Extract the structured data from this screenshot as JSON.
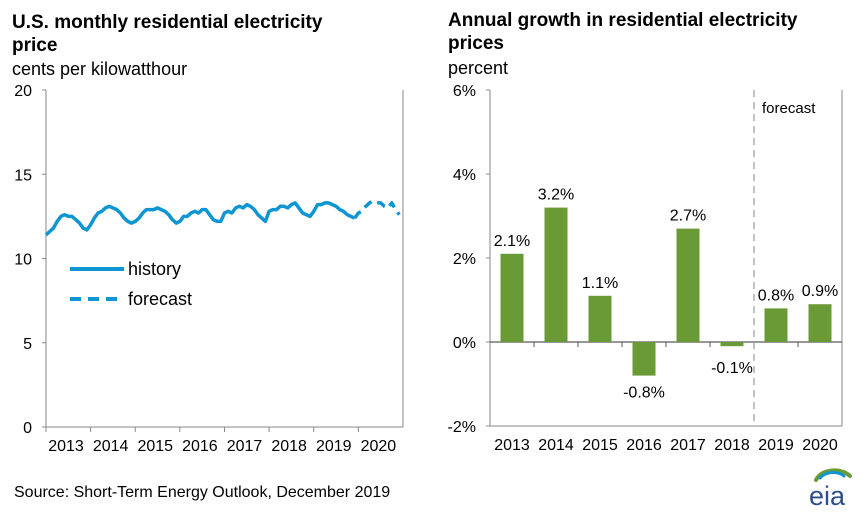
{
  "left_chart": {
    "title": "U.S. monthly residential electricity price",
    "unit": "cents per kilowatthour",
    "legend": {
      "history": "history",
      "forecast": "forecast"
    },
    "color": "#0f96d2"
  },
  "right_chart": {
    "title": "Annual growth in residential electricity prices",
    "unit": "percent",
    "forecast_label": "forecast",
    "bar_color": "#6a9a35"
  },
  "source": "Source: Short-Term Energy Outlook, December 2019",
  "logo_text": "eia",
  "chart_data": [
    {
      "type": "line",
      "title": "U.S. monthly residential electricity price",
      "ylabel": "cents per kilowatthour",
      "xlabel": "",
      "ylim": [
        0,
        20
      ],
      "yticks": [
        0,
        5,
        10,
        15,
        20
      ],
      "xticks": [
        "2013",
        "2014",
        "2015",
        "2016",
        "2017",
        "2018",
        "2019",
        "2020"
      ],
      "x_start": "2013-01",
      "frequency": "monthly",
      "legend_position": "left-middle",
      "series": [
        {
          "name": "history",
          "style": "solid",
          "values": [
            11.4,
            11.6,
            11.8,
            12.2,
            12.5,
            12.6,
            12.5,
            12.5,
            12.3,
            12.1,
            11.8,
            11.7,
            12.0,
            12.4,
            12.7,
            12.8,
            13.0,
            13.1,
            13.0,
            12.9,
            12.7,
            12.4,
            12.2,
            12.1,
            12.2,
            12.4,
            12.7,
            12.9,
            12.9,
            12.9,
            13.0,
            12.9,
            12.8,
            12.6,
            12.3,
            12.1,
            12.2,
            12.5,
            12.5,
            12.7,
            12.8,
            12.7,
            12.9,
            12.9,
            12.6,
            12.3,
            12.2,
            12.2,
            12.7,
            12.8,
            12.7,
            13.0,
            13.1,
            13.0,
            13.2,
            13.1,
            12.9,
            12.6,
            12.4,
            12.2,
            12.8,
            12.9,
            12.9,
            13.1,
            13.1,
            13.0,
            13.2,
            13.3,
            13.0,
            12.7,
            12.6,
            12.5,
            12.8,
            13.2,
            13.2,
            13.3,
            13.3,
            13.2,
            13.1,
            12.9,
            12.8,
            12.6,
            12.5,
            12.4
          ]
        },
        {
          "name": "forecast",
          "style": "dashed",
          "start_index": 83,
          "values": [
            12.4,
            12.7,
            12.8,
            13.1,
            13.3,
            13.4,
            13.3,
            13.3,
            13.1,
            13.0,
            13.3,
            12.9,
            12.6
          ]
        }
      ]
    },
    {
      "type": "bar",
      "title": "Annual growth in residential electricity prices",
      "ylabel": "percent",
      "xlabel": "",
      "ylim": [
        -2,
        6
      ],
      "yticks": [
        "-2%",
        "0%",
        "2%",
        "4%",
        "6%"
      ],
      "ytick_values": [
        -2,
        0,
        2,
        4,
        6
      ],
      "categories": [
        "2013",
        "2014",
        "2015",
        "2016",
        "2017",
        "2018",
        "2019",
        "2020"
      ],
      "values": [
        2.1,
        3.2,
        1.1,
        -0.8,
        2.7,
        -0.1,
        0.8,
        0.9
      ],
      "data_labels": [
        "2.1%",
        "3.2%",
        "1.1%",
        "-0.8%",
        "2.7%",
        "-0.1%",
        "0.8%",
        "0.9%"
      ],
      "forecast_start": "2019",
      "annotation": "forecast"
    }
  ]
}
